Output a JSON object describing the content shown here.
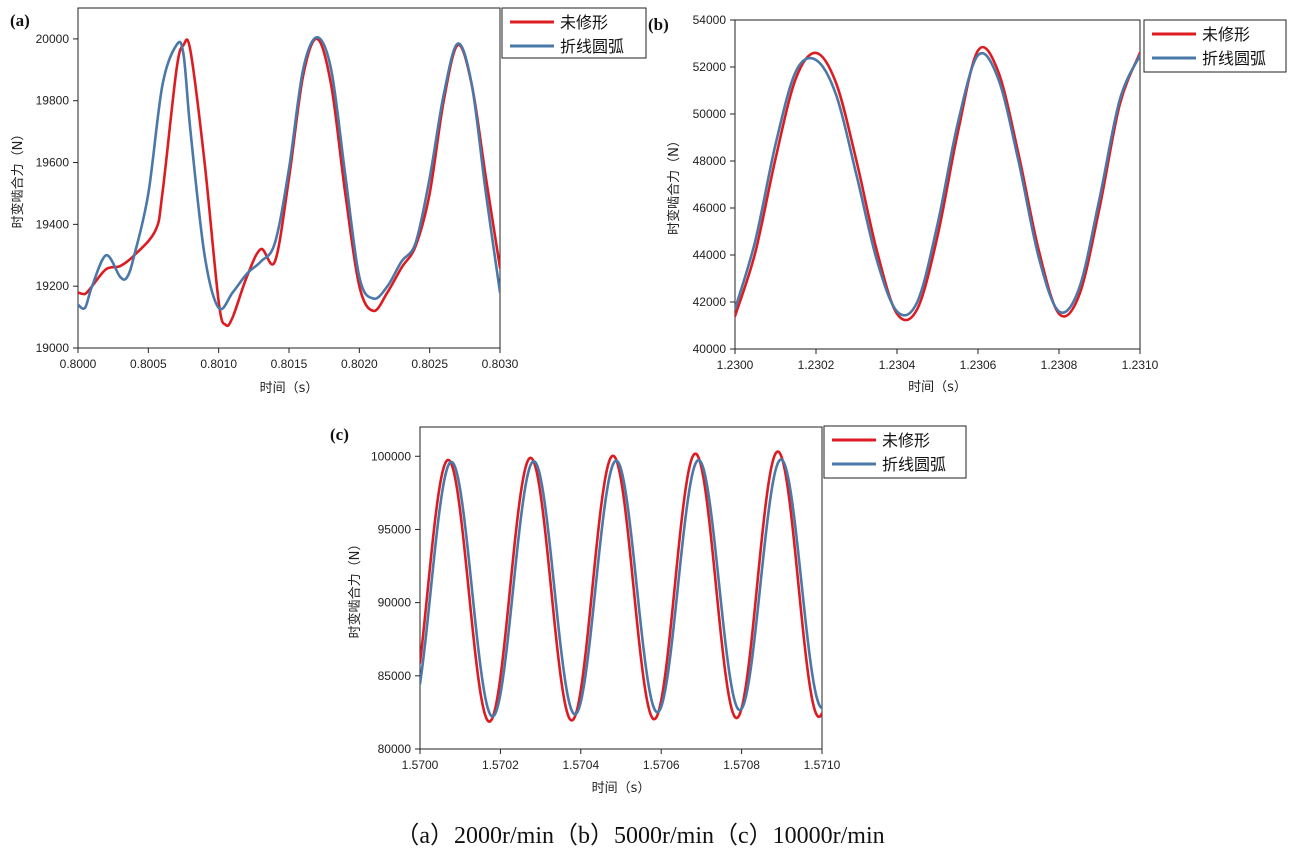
{
  "caption": "（a）2000r/min（b）5000r/min（c）10000r/min",
  "colors": {
    "series1": "#dd1c22",
    "series2": "#4a78a8"
  },
  "chart_data": [
    {
      "panel": "(a)",
      "type": "line",
      "xlabel": "时间（s）",
      "ylabel": "时变啮合力（N）",
      "xlim": [
        0.8,
        0.803
      ],
      "ylim": [
        19000,
        20100
      ],
      "xticks": [
        0.8,
        0.8005,
        0.801,
        0.8015,
        0.802,
        0.8025,
        0.803
      ],
      "xtick_labels": [
        "0.8000",
        "0.8005",
        "0.8010",
        "0.8015",
        "0.8020",
        "0.8025",
        "0.8030"
      ],
      "yticks": [
        19000,
        19200,
        19400,
        19600,
        19800,
        20000
      ],
      "legend": "top-right-outside",
      "series": [
        {
          "name": "未修形",
          "color": "#dd1c22",
          "x": [
            0.8,
            0.80005,
            0.8001,
            0.8002,
            0.8003,
            0.8004,
            0.80055,
            0.8006,
            0.8007,
            0.80075,
            0.8008,
            0.8009,
            0.801,
            0.80105,
            0.8011,
            0.8012,
            0.8013,
            0.8014,
            0.8015,
            0.8016,
            0.8017,
            0.8018,
            0.8019,
            0.802,
            0.8021,
            0.8022,
            0.8023,
            0.8024,
            0.8025,
            0.8026,
            0.8027,
            0.8028,
            0.8029,
            0.803
          ],
          "y": [
            19180,
            19175,
            19200,
            19255,
            19265,
            19300,
            19380,
            19500,
            19900,
            19980,
            19960,
            19600,
            19150,
            19075,
            19100,
            19230,
            19320,
            19280,
            19550,
            19880,
            20000,
            19850,
            19500,
            19200,
            19120,
            19180,
            19260,
            19330,
            19500,
            19800,
            19980,
            19850,
            19550,
            19260
          ]
        },
        {
          "name": "折线圆弧",
          "color": "#4a78a8",
          "x": [
            0.8,
            0.80005,
            0.8001,
            0.8002,
            0.8003,
            0.80035,
            0.8004,
            0.8005,
            0.8006,
            0.8007,
            0.80075,
            0.8008,
            0.8009,
            0.801,
            0.8011,
            0.8012,
            0.8013,
            0.8014,
            0.8015,
            0.8016,
            0.8017,
            0.8018,
            0.8019,
            0.802,
            0.8021,
            0.8022,
            0.8023,
            0.8024,
            0.8025,
            0.8026,
            0.8027,
            0.8028,
            0.8029,
            0.803
          ],
          "y": [
            19140,
            19130,
            19200,
            19300,
            19230,
            19230,
            19300,
            19500,
            19850,
            19980,
            19950,
            19700,
            19300,
            19130,
            19180,
            19240,
            19280,
            19340,
            19580,
            19900,
            20005,
            19900,
            19560,
            19230,
            19160,
            19200,
            19280,
            19340,
            19550,
            19820,
            19985,
            19850,
            19500,
            19180
          ]
        }
      ]
    },
    {
      "panel": "(b)",
      "type": "line",
      "xlabel": "时间（s）",
      "ylabel": "时变啮合力（N）",
      "xlim": [
        1.23,
        1.231
      ],
      "ylim": [
        40000,
        54000
      ],
      "xticks": [
        1.23,
        1.2302,
        1.2304,
        1.2306,
        1.2308,
        1.231
      ],
      "xtick_labels": [
        "1.2300",
        "1.2302",
        "1.2304",
        "1.2306",
        "1.2308",
        "1.2310"
      ],
      "yticks": [
        40000,
        42000,
        44000,
        46000,
        48000,
        50000,
        52000,
        54000
      ],
      "legend": "top-right-outside",
      "series": [
        {
          "name": "未修形",
          "color": "#dd1c22",
          "x": [
            1.23,
            1.23005,
            1.2301,
            1.23015,
            1.2302,
            1.23025,
            1.2303,
            1.23035,
            1.2304,
            1.23045,
            1.2305,
            1.23055,
            1.2306,
            1.23065,
            1.2307,
            1.23075,
            1.2308,
            1.23085,
            1.2309,
            1.23095,
            1.231
          ],
          "y": [
            41400,
            44100,
            48100,
            51500,
            52600,
            51300,
            48000,
            44200,
            41500,
            41700,
            44800,
            49200,
            52700,
            51800,
            48300,
            44200,
            41500,
            42300,
            46000,
            50400,
            52600
          ]
        },
        {
          "name": "折线圆弧",
          "color": "#4a78a8",
          "x": [
            1.23,
            1.23005,
            1.2301,
            1.23015,
            1.2302,
            1.23025,
            1.2303,
            1.23035,
            1.2304,
            1.23045,
            1.2305,
            1.23055,
            1.2306,
            1.23065,
            1.2307,
            1.23075,
            1.2308,
            1.23085,
            1.2309,
            1.23095,
            1.231
          ],
          "y": [
            41700,
            44600,
            48700,
            51800,
            52300,
            50800,
            47400,
            43800,
            41600,
            42000,
            45300,
            49600,
            52500,
            51500,
            48000,
            43900,
            41600,
            42600,
            46400,
            50600,
            52500
          ]
        }
      ]
    },
    {
      "panel": "(c)",
      "type": "line",
      "xlabel": "时间（s）",
      "ylabel": "时变啮合力（N）",
      "xlim": [
        1.57,
        1.571
      ],
      "ylim": [
        80000,
        102000
      ],
      "xticks": [
        1.57,
        1.5702,
        1.5704,
        1.5706,
        1.5708,
        1.571
      ],
      "xtick_labels": [
        "1.5700",
        "1.5702",
        "1.5704",
        "1.5706",
        "1.5708",
        "1.5710"
      ],
      "yticks": [
        80000,
        85000,
        90000,
        95000,
        100000
      ],
      "legend": "top-right-outside",
      "series": [
        {
          "name": "未修形",
          "color": "#dd1c22",
          "model": "sine",
          "x_start": 1.57,
          "x_end": 1.571,
          "period": 0.000205,
          "phase_x_peak": 1.57007,
          "y_peak_start": 99700,
          "y_peak_end": 100400,
          "y_trough_start": 81800,
          "y_trough_end": 82200
        },
        {
          "name": "折线圆弧",
          "color": "#4a78a8",
          "model": "sine",
          "x_start": 1.57,
          "x_end": 1.571,
          "period": 0.000205,
          "phase_x_peak": 1.570078,
          "y_peak_start": 99600,
          "y_peak_end": 99800,
          "y_trough_start": 82100,
          "y_trough_end": 82800
        }
      ]
    }
  ]
}
